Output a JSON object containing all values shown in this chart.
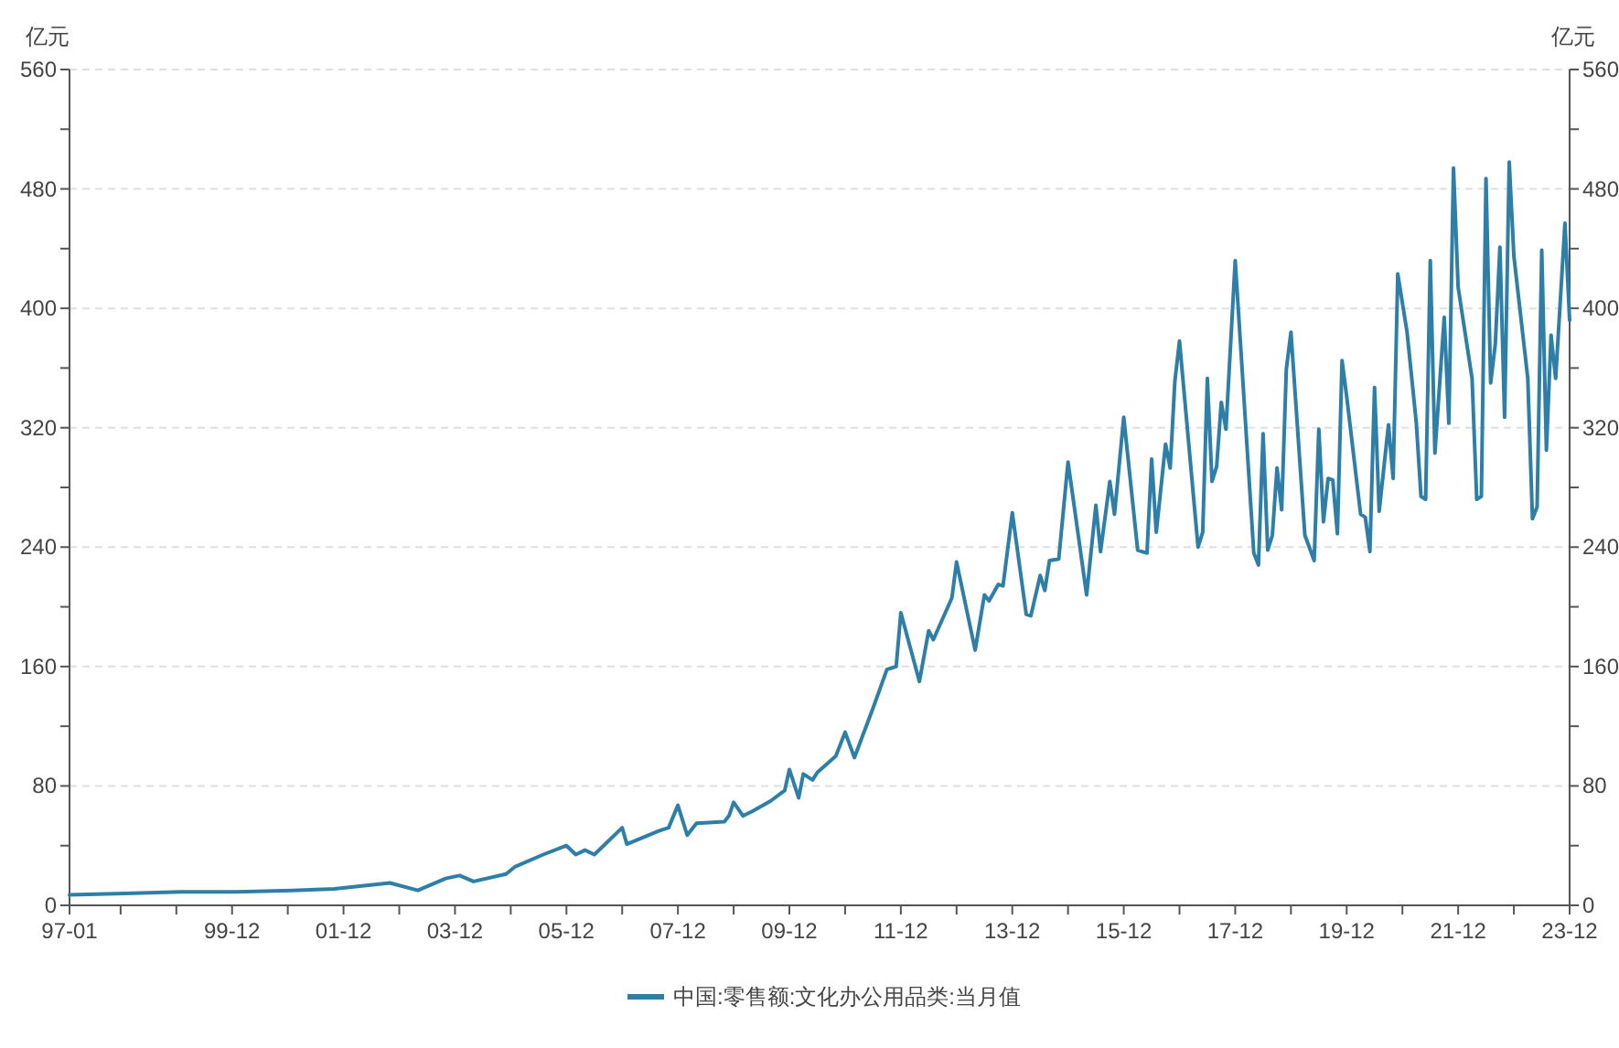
{
  "chart_data": {
    "type": "line",
    "ylabel": "亿元",
    "y2label": "亿元",
    "x": [
      "1997-01",
      "1998-01",
      "1999-01",
      "2000-01",
      "2001-01",
      "2001-10",
      "2002-10",
      "2003-04",
      "2003-10",
      "2004-01",
      "2004-04",
      "2004-11",
      "2005-01",
      "2005-07",
      "2005-12",
      "2006-02",
      "2006-04",
      "2006-06",
      "2006-08",
      "2006-12",
      "2007-01",
      "2007-08",
      "2007-10",
      "2007-12",
      "2008-02",
      "2008-04",
      "2008-10",
      "2008-11",
      "2008-12",
      "2009-02",
      "2009-04",
      "2009-08",
      "2009-11",
      "2009-12",
      "2010-02",
      "2010-03",
      "2010-05",
      "2010-06",
      "2010-10",
      "2010-12",
      "2011-02",
      "2011-06",
      "2011-09",
      "2011-11",
      "2011-12",
      "2012-04",
      "2012-06",
      "2012-07",
      "2012-11",
      "2012-12",
      "2013-04",
      "2013-06",
      "2013-07",
      "2013-09",
      "2013-10",
      "2013-12",
      "2014-03",
      "2014-04",
      "2014-06",
      "2014-07",
      "2014-08",
      "2014-10",
      "2014-12",
      "2015-04",
      "2015-06",
      "2015-07",
      "2015-09",
      "2015-10",
      "2015-12",
      "2016-03",
      "2016-05",
      "2016-06",
      "2016-07",
      "2016-09",
      "2016-10",
      "2016-11",
      "2016-12",
      "2017-04",
      "2017-05",
      "2017-06",
      "2017-07",
      "2017-08",
      "2017-09",
      "2017-10",
      "2017-12",
      "2018-04",
      "2018-05",
      "2018-06",
      "2018-07",
      "2018-08",
      "2018-09",
      "2018-10",
      "2018-11",
      "2018-12",
      "2019-03",
      "2019-05",
      "2019-06",
      "2019-07",
      "2019-08",
      "2019-09",
      "2019-10",
      "2019-11",
      "2019-12",
      "2020-03",
      "2020-04",
      "2020-05",
      "2020-06",
      "2020-07",
      "2020-09",
      "2020-10",
      "2020-11",
      "2021-01",
      "2021-03",
      "2021-04",
      "2021-05",
      "2021-06",
      "2021-07",
      "2021-09",
      "2021-10",
      "2021-11",
      "2021-12",
      "2022-03",
      "2022-04",
      "2022-05",
      "2022-06",
      "2022-07",
      "2022-08",
      "2022-09",
      "2022-10",
      "2022-11",
      "2022-12",
      "2023-03",
      "2023-04",
      "2023-05",
      "2023-06",
      "2023-07",
      "2023-08",
      "2023-09",
      "2023-11",
      "2023-12"
    ],
    "series": [
      {
        "name": "中国:零售额:文化办公用品类:当月值",
        "color": "#2e7fa8",
        "values": [
          7,
          8,
          9,
          9,
          10,
          11,
          15,
          10,
          18,
          20,
          16,
          21,
          26,
          34,
          40,
          34,
          37,
          34,
          40,
          52,
          41,
          50,
          52,
          67,
          47,
          55,
          56,
          60,
          69,
          60,
          63,
          70,
          77,
          91,
          72,
          88,
          84,
          89,
          100,
          116,
          99,
          132,
          158,
          160,
          196,
          150,
          184,
          178,
          206,
          230,
          171,
          208,
          204,
          215,
          214,
          263,
          195,
          194,
          221,
          211,
          231,
          232,
          297,
          208,
          268,
          237,
          284,
          262,
          327,
          238,
          236,
          299,
          250,
          309,
          293,
          351,
          378,
          240,
          250,
          353,
          284,
          294,
          337,
          319,
          432,
          236,
          228,
          316,
          238,
          248,
          293,
          265,
          359,
          384,
          248,
          231,
          319,
          257,
          286,
          285,
          249,
          365,
          341,
          262,
          260,
          237,
          347,
          264,
          322,
          286,
          423,
          384,
          323,
          274,
          272,
          432,
          303,
          394,
          323,
          494,
          414,
          353,
          272,
          274,
          487,
          350,
          376,
          441,
          327,
          498,
          435,
          353,
          259,
          267,
          439,
          305,
          382,
          353,
          457,
          392
        ]
      }
    ],
    "xlim": [
      "1997-01",
      "2023-12"
    ],
    "xticks": [
      {
        "value": "1997-01",
        "label": "97-01"
      },
      {
        "value": "1997-12",
        "label": null
      },
      {
        "value": "1998-12",
        "label": null
      },
      {
        "value": "1999-12",
        "label": "99-12"
      },
      {
        "value": "2000-12",
        "label": null
      },
      {
        "value": "2001-12",
        "label": "01-12"
      },
      {
        "value": "2002-12",
        "label": null
      },
      {
        "value": "2003-12",
        "label": "03-12"
      },
      {
        "value": "2004-12",
        "label": null
      },
      {
        "value": "2005-12",
        "label": "05-12"
      },
      {
        "value": "2006-12",
        "label": null
      },
      {
        "value": "2007-12",
        "label": "07-12"
      },
      {
        "value": "2008-12",
        "label": null
      },
      {
        "value": "2009-12",
        "label": "09-12"
      },
      {
        "value": "2010-12",
        "label": null
      },
      {
        "value": "2011-12",
        "label": "11-12"
      },
      {
        "value": "2012-12",
        "label": null
      },
      {
        "value": "2013-12",
        "label": "13-12"
      },
      {
        "value": "2014-12",
        "label": null
      },
      {
        "value": "2015-12",
        "label": "15-12"
      },
      {
        "value": "2016-12",
        "label": null
      },
      {
        "value": "2017-12",
        "label": "17-12"
      },
      {
        "value": "2018-12",
        "label": null
      },
      {
        "value": "2019-12",
        "label": "19-12"
      },
      {
        "value": "2020-12",
        "label": null
      },
      {
        "value": "2021-12",
        "label": "21-12"
      },
      {
        "value": "2022-12",
        "label": null
      },
      {
        "value": "2023-12",
        "label": "23-12"
      }
    ],
    "ylim": [
      0,
      560
    ],
    "yticks": [
      0,
      {
        "value": 40,
        "label": null
      },
      80,
      {
        "value": 120,
        "label": null
      },
      160,
      {
        "value": 200,
        "label": null
      },
      240,
      {
        "value": 280,
        "label": null
      },
      320,
      {
        "value": 360,
        "label": null
      },
      400,
      {
        "value": 440,
        "label": null
      },
      480,
      {
        "value": 520,
        "label": null
      },
      560
    ],
    "y2lim": [
      0,
      560
    ],
    "y2ticks": [
      0,
      {
        "value": 40,
        "label": null
      },
      80,
      {
        "value": 120,
        "label": null
      },
      160,
      {
        "value": 200,
        "label": null
      },
      240,
      {
        "value": 280,
        "label": null
      },
      320,
      {
        "value": 360,
        "label": null
      },
      400,
      {
        "value": 440,
        "label": null
      },
      480,
      {
        "value": 520,
        "label": null
      },
      560
    ],
    "grid": "y",
    "legend": "bottom",
    "line_style": "solid"
  }
}
